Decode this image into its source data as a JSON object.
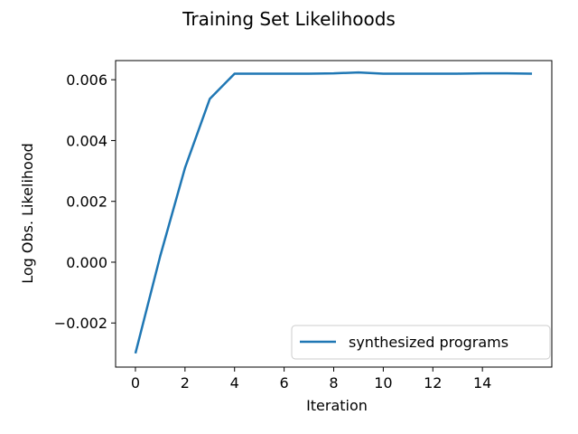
{
  "chart_data": {
    "type": "line",
    "title": "Training Set Likelihoods",
    "xlabel": "Iteration",
    "ylabel": "Log Obs. Likelihood",
    "xlim": [
      -0.8,
      16.8
    ],
    "ylim": [
      -0.00345,
      0.00663
    ],
    "xticks": [
      0,
      2,
      4,
      6,
      8,
      10,
      12,
      14
    ],
    "xtick_labels": [
      "0",
      "2",
      "4",
      "6",
      "8",
      "10",
      "12",
      "14"
    ],
    "yticks": [
      -0.002,
      0.0,
      0.002,
      0.004,
      0.006
    ],
    "ytick_labels": [
      "−0.002",
      "0.000",
      "0.002",
      "0.004",
      "0.006"
    ],
    "grid": false,
    "legend_position": "lower-right",
    "series": [
      {
        "name": "synthesized programs",
        "color": "#1f77b4",
        "x": [
          0,
          1,
          2,
          3,
          4,
          5,
          6,
          7,
          8,
          9,
          10,
          11,
          12,
          13,
          14,
          15,
          16
        ],
        "y": [
          -0.003,
          0.0002,
          0.0031,
          0.00537,
          0.0062,
          0.0062,
          0.0062,
          0.0062,
          0.00621,
          0.00624,
          0.0062,
          0.0062,
          0.0062,
          0.0062,
          0.00621,
          0.00621,
          0.0062
        ]
      }
    ]
  }
}
